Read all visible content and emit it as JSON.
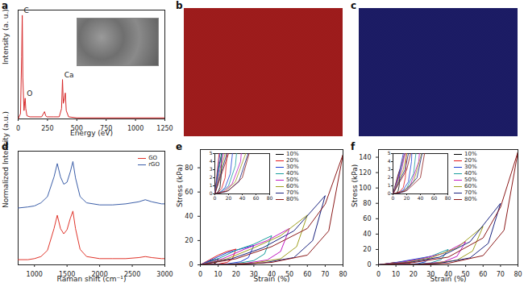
{
  "chart_data": [
    {
      "type": "line",
      "title": "a",
      "xlabel": "Energy (eV)",
      "ylabel": "Intensity (a. u.)",
      "xlim": [
        0,
        1250
      ],
      "xticks": [
        0,
        250,
        500,
        750,
        1000,
        1250
      ],
      "ylim": [
        0,
        1.05
      ],
      "tick_labels": "x",
      "color": "#d62728",
      "x": [
        0,
        20,
        30,
        35,
        40,
        50,
        55,
        60,
        65,
        75,
        100,
        200,
        225,
        235,
        245,
        300,
        350,
        370,
        378,
        385,
        395,
        402,
        410,
        430,
        500,
        750,
        1000,
        1250
      ],
      "values": [
        0,
        0.05,
        0.6,
        1.0,
        0.4,
        0.08,
        0.15,
        0.2,
        0.1,
        0.03,
        0.02,
        0.02,
        0.07,
        0.03,
        0.02,
        0.02,
        0.02,
        0.1,
        0.38,
        0.15,
        0.2,
        0.25,
        0.08,
        0.02,
        0.01,
        0.01,
        0.01,
        0.01
      ],
      "annotations": [
        {
          "text": "C",
          "x": 35,
          "y": 1.0
        },
        {
          "text": "O",
          "x": 60,
          "y": 0.2
        },
        {
          "text": "Ca",
          "x": 380,
          "y": 0.38
        }
      ]
    },
    {
      "type": "map",
      "title": "b",
      "color": "#a01c1c"
    },
    {
      "type": "map",
      "title": "c",
      "color": "#1c1c66"
    },
    {
      "type": "line",
      "title": "d",
      "xlabel": "Raman shift (cm⁻¹)",
      "ylabel": "Normalized Intensity (a.u.)",
      "xlim": [
        750,
        3000
      ],
      "xticks": [
        1000,
        1500,
        2000,
        2500,
        3000
      ],
      "ylim": [
        0,
        1.1
      ],
      "tick_labels": "x",
      "legend": "top-right",
      "x": [
        750,
        900,
        1000,
        1100,
        1200,
        1300,
        1350,
        1400,
        1450,
        1500,
        1550,
        1590,
        1630,
        1700,
        1800,
        2000,
        2200,
        2400,
        2600,
        2700,
        2800,
        2950,
        3000
      ],
      "series": [
        {
          "name": "GO",
          "color": "#e0352b",
          "values": [
            0.05,
            0.05,
            0.06,
            0.08,
            0.14,
            0.35,
            0.48,
            0.35,
            0.3,
            0.34,
            0.45,
            0.52,
            0.35,
            0.15,
            0.08,
            0.06,
            0.06,
            0.06,
            0.07,
            0.08,
            0.07,
            0.06,
            0.06
          ]
        },
        {
          "name": "rGO",
          "color": "#3b5ea8",
          "values": [
            0.55,
            0.56,
            0.57,
            0.6,
            0.66,
            0.85,
            0.98,
            0.85,
            0.78,
            0.8,
            0.9,
            1.0,
            0.84,
            0.66,
            0.6,
            0.58,
            0.58,
            0.59,
            0.61,
            0.63,
            0.61,
            0.59,
            0.59
          ]
        }
      ]
    },
    {
      "type": "line",
      "title": "e",
      "xlabel": "Strain (%)",
      "ylabel": "Stress (kPa)",
      "xlim": [
        0,
        80
      ],
      "xticks": [
        0,
        10,
        20,
        30,
        40,
        50,
        60,
        70,
        80
      ],
      "ylim": [
        0,
        95
      ],
      "yticks": [
        0,
        20,
        40,
        60,
        80
      ],
      "legend": "top",
      "series": [
        {
          "name": "10%",
          "color": "#000000",
          "x": [
            0,
            2.5,
            5,
            7.5,
            10,
            9,
            7.5,
            5,
            2.5,
            0
          ],
          "values": [
            0,
            1.5,
            3,
            4,
            5,
            2,
            0.8,
            0.3,
            0.1,
            0
          ]
        },
        {
          "name": "20%",
          "color": "#e41a1c",
          "x": [
            0,
            5,
            10,
            15,
            20,
            18,
            15,
            10,
            5,
            0
          ],
          "values": [
            0,
            4,
            8,
            11,
            13,
            5,
            2,
            0.7,
            0.2,
            0
          ]
        },
        {
          "name": "30%",
          "color": "#1f3fd6",
          "x": [
            0,
            7.5,
            15,
            22.5,
            30,
            27,
            22.5,
            15,
            7.5,
            0
          ],
          "values": [
            0,
            5,
            10,
            13,
            16,
            6,
            2.5,
            0.8,
            0.2,
            0
          ]
        },
        {
          "name": "40%",
          "color": "#1a9e9e",
          "x": [
            0,
            10,
            20,
            30,
            40,
            36,
            30,
            20,
            10,
            0
          ],
          "values": [
            0,
            5,
            12,
            17,
            24,
            9,
            3.5,
            1,
            0.3,
            0
          ]
        },
        {
          "name": "50%",
          "color": "#c21bc2",
          "x": [
            0,
            12.5,
            25,
            37.5,
            50,
            45,
            37.5,
            25,
            12.5,
            0
          ],
          "values": [
            0,
            5,
            13,
            20,
            30,
            11,
            4,
            1.2,
            0.3,
            0
          ]
        },
        {
          "name": "60%",
          "color": "#a0a020",
          "x": [
            0,
            15,
            30,
            45,
            60,
            54,
            45,
            30,
            15,
            0
          ],
          "values": [
            0,
            5,
            14,
            24,
            41,
            15,
            5,
            1.5,
            0.3,
            0
          ]
        },
        {
          "name": "70%",
          "color": "#1a237e",
          "x": [
            0,
            17.5,
            35,
            52.5,
            70,
            63,
            52.5,
            35,
            17.5,
            0
          ],
          "values": [
            0,
            5,
            14,
            28,
            57,
            20,
            6,
            1.5,
            0.3,
            0
          ]
        },
        {
          "name": "80%",
          "color": "#8b1a1a",
          "x": [
            0,
            20,
            40,
            60,
            70,
            80,
            72,
            60,
            40,
            20,
            0
          ],
          "values": [
            0,
            5,
            15,
            30,
            50,
            91,
            28,
            8,
            2,
            0.4,
            0
          ]
        }
      ],
      "inset": {
        "xlim": [
          0,
          80
        ],
        "xticks": [
          0,
          20,
          40,
          60,
          80
        ],
        "ylim": [
          0,
          5
        ],
        "yticks": [
          0,
          1,
          2,
          3,
          4,
          5
        ]
      }
    },
    {
      "type": "line",
      "title": "f",
      "xlabel": "Strain (%)",
      "ylabel": "Stress (kPa)",
      "xlim": [
        0,
        80
      ],
      "xticks": [
        0,
        10,
        20,
        30,
        40,
        50,
        60,
        70,
        80
      ],
      "ylim": [
        0,
        150
      ],
      "yticks": [
        0,
        20,
        40,
        60,
        80,
        100,
        120,
        140
      ],
      "legend": "top",
      "series": [
        {
          "name": "10%",
          "color": "#000000",
          "x": [
            0,
            2.5,
            5,
            7.5,
            10,
            9,
            7.5,
            5,
            2.5,
            0
          ],
          "values": [
            0,
            0.8,
            1.6,
            2.4,
            3,
            1,
            0.4,
            0.1,
            0,
            0
          ]
        },
        {
          "name": "20%",
          "color": "#e41a1c",
          "x": [
            0,
            5,
            10,
            15,
            20,
            18,
            15,
            10,
            5,
            0
          ],
          "values": [
            0,
            1.5,
            3,
            4.5,
            6,
            2,
            0.8,
            0.3,
            0.1,
            0
          ]
        },
        {
          "name": "30%",
          "color": "#1f3fd6",
          "x": [
            0,
            7.5,
            15,
            22.5,
            30,
            27,
            22.5,
            15,
            7.5,
            0
          ],
          "values": [
            0,
            2,
            5,
            8,
            11,
            4,
            1.5,
            0.5,
            0.1,
            0
          ]
        },
        {
          "name": "40%",
          "color": "#1a9e9e",
          "x": [
            0,
            10,
            20,
            30,
            40,
            36,
            30,
            20,
            10,
            0
          ],
          "values": [
            0,
            2.5,
            6,
            11,
            20,
            7,
            2.5,
            0.7,
            0.1,
            0
          ]
        },
        {
          "name": "50%",
          "color": "#c21bc2",
          "x": [
            0,
            12.5,
            25,
            37.5,
            50,
            45,
            37.5,
            25,
            12.5,
            0
          ],
          "values": [
            0,
            3,
            8,
            15,
            30,
            11,
            4,
            1,
            0.2,
            0
          ]
        },
        {
          "name": "60%",
          "color": "#a0a020",
          "x": [
            0,
            15,
            30,
            45,
            60,
            54,
            45,
            30,
            15,
            0
          ],
          "values": [
            0,
            3,
            9,
            22,
            50,
            18,
            6,
            1.5,
            0.3,
            0
          ]
        },
        {
          "name": "70%",
          "color": "#1a237e",
          "x": [
            0,
            17.5,
            35,
            52.5,
            70,
            63,
            52.5,
            35,
            17.5,
            0
          ],
          "values": [
            0,
            3,
            10,
            30,
            80,
            28,
            9,
            2,
            0.3,
            0
          ]
        },
        {
          "name": "80%",
          "color": "#8b1a1a",
          "x": [
            0,
            20,
            40,
            60,
            70,
            80,
            72,
            60,
            40,
            20,
            0
          ],
          "values": [
            0,
            3,
            10,
            35,
            75,
            147,
            45,
            12,
            2,
            0.4,
            0
          ]
        }
      ],
      "inset": {
        "xlim": [
          0,
          80
        ],
        "xticks": [
          0,
          20,
          40,
          60,
          80
        ],
        "ylim": [
          0,
          5
        ],
        "yticks": [
          0,
          1,
          2,
          3,
          4,
          5
        ]
      }
    }
  ]
}
